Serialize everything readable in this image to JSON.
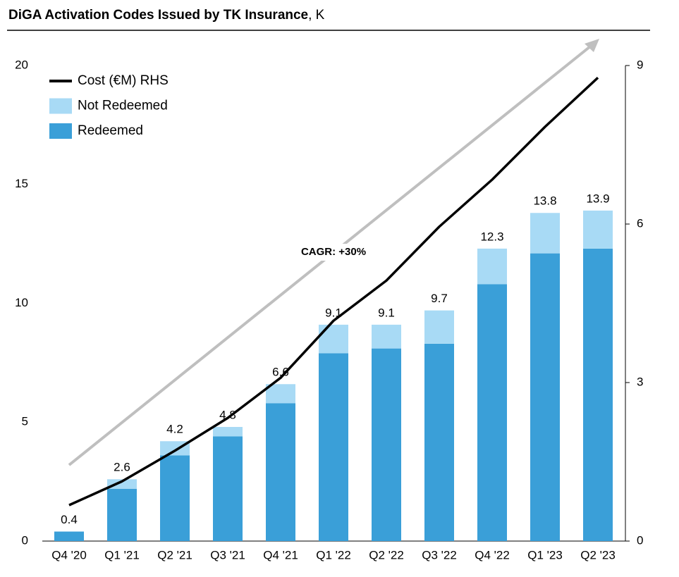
{
  "chart_data": {
    "type": "bar-line",
    "title": "DiGA Activation Codes Issued by TK Insurance",
    "title_suffix": ", K",
    "categories": [
      "Q4 '20",
      "Q1 '21",
      "Q2 '21",
      "Q3 '21",
      "Q4 '21",
      "Q1 '22",
      "Q2 '22",
      "Q3 '22",
      "Q4 '22",
      "Q1 '23",
      "Q2 '23"
    ],
    "series": [
      {
        "name": "Redeemed",
        "color": "#3a9fd8",
        "values": [
          0.4,
          2.2,
          3.6,
          4.4,
          5.8,
          7.9,
          8.1,
          8.3,
          10.8,
          12.1,
          12.3
        ]
      },
      {
        "name": "Not Redeemed",
        "color": "#a8daf5",
        "values": [
          0,
          0.4,
          0.6,
          0.4,
          0.8,
          1.2,
          1.0,
          1.4,
          1.5,
          1.7,
          1.6
        ]
      },
      {
        "name": "Cost (€M) RHS",
        "color": "#000000",
        "axis": "y2",
        "type": "line",
        "values": [
          0.68,
          1.13,
          1.71,
          2.33,
          3.09,
          4.17,
          4.93,
          5.95,
          6.84,
          7.84,
          8.77
        ]
      }
    ],
    "totals": [
      0.4,
      2.6,
      4.2,
      4.8,
      6.6,
      9.1,
      9.1,
      9.7,
      12.3,
      13.8,
      13.9
    ],
    "annotation": "CAGR: +30%",
    "ylim": [
      0,
      20
    ],
    "yticks": [
      0,
      5,
      10,
      15,
      20
    ],
    "y2lim": [
      0,
      9
    ],
    "y2ticks": [
      0,
      3,
      6,
      9
    ],
    "legend": "top-left"
  }
}
